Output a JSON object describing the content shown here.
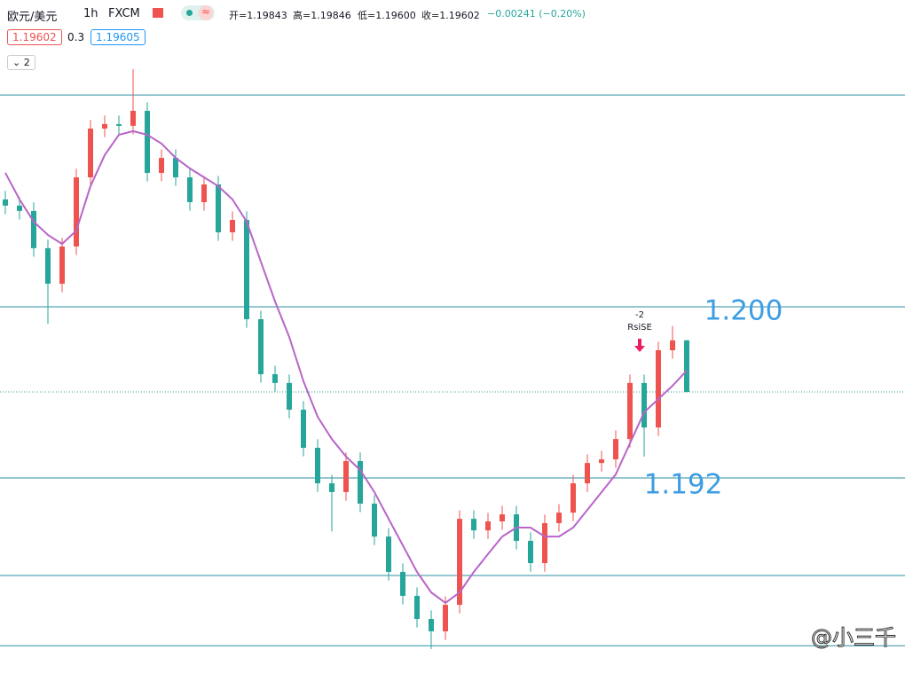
{
  "header": {
    "symbol": "欧元/美元",
    "interval": "1h",
    "source": "FXCM",
    "open": "开=1.19843",
    "high": "高=1.19846",
    "low": "低=1.19600",
    "close": "收=1.19602",
    "change": "−0.00241 (−0.20%)",
    "sell": "1.19602",
    "spread": "0.3",
    "buy": "1.19605",
    "indicators": "2"
  },
  "chart_data": {
    "type": "candlestick",
    "up_color": "#ef5350",
    "down_color": "#26a69a",
    "ma_color": "#b865c8",
    "level_color": "#2e8fa3",
    "ylim": [
      1.18251,
      1.21434
    ],
    "open": [
      1.20502,
      1.20473,
      1.20448,
      1.20274,
      1.20108,
      1.20282,
      1.20605,
      1.20833,
      1.20854,
      1.20846,
      1.20916,
      1.20626,
      1.20696,
      1.20605,
      1.20489,
      1.20572,
      1.20348,
      1.20406,
      1.19942,
      1.19685,
      1.19644,
      1.19519,
      1.19341,
      1.19175,
      1.19134,
      1.19279,
      1.1908,
      1.18926,
      1.18761,
      1.18649,
      1.18541,
      1.18483,
      1.18607,
      1.19009,
      1.18955,
      1.18997,
      1.1903,
      1.18906,
      1.18802,
      1.18989,
      1.19038,
      1.19175,
      1.1927,
      1.19287,
      1.19382,
      1.19644,
      1.19436,
      1.19797,
      1.19843
    ],
    "high": [
      1.20542,
      1.20513,
      1.20488,
      1.20314,
      1.20322,
      1.20645,
      1.20873,
      1.20894,
      1.20894,
      1.21111,
      1.20956,
      1.20736,
      1.20736,
      1.20645,
      1.20612,
      1.20612,
      1.20446,
      1.20446,
      1.19982,
      1.19725,
      1.19684,
      1.19559,
      1.19381,
      1.19215,
      1.19319,
      1.19319,
      1.1912,
      1.18966,
      1.18801,
      1.18689,
      1.18581,
      1.18647,
      1.19049,
      1.19049,
      1.19037,
      1.1907,
      1.1907,
      1.18946,
      1.19029,
      1.19078,
      1.19215,
      1.1931,
      1.19327,
      1.19422,
      1.19684,
      1.19684,
      1.19837,
      1.1991,
      1.19846
    ],
    "low": [
      1.20433,
      1.20408,
      1.20234,
      1.1992,
      1.20068,
      1.20242,
      1.20565,
      1.20793,
      1.20806,
      1.20806,
      1.20586,
      1.20586,
      1.20565,
      1.20449,
      1.20449,
      1.20308,
      1.20308,
      1.19902,
      1.19645,
      1.19604,
      1.19479,
      1.19301,
      1.19135,
      1.1895,
      1.19094,
      1.1904,
      1.18886,
      1.18721,
      1.18609,
      1.18501,
      1.184,
      1.18443,
      1.18567,
      1.18915,
      1.18915,
      1.18957,
      1.18866,
      1.18762,
      1.18762,
      1.18949,
      1.18998,
      1.19135,
      1.1923,
      1.19247,
      1.19342,
      1.193,
      1.19396,
      1.19757,
      1.196
    ],
    "close": [
      1.20473,
      1.20448,
      1.20274,
      1.20108,
      1.20282,
      1.20605,
      1.20833,
      1.20854,
      1.20846,
      1.20916,
      1.20626,
      1.20696,
      1.20605,
      1.20489,
      1.20572,
      1.20348,
      1.20406,
      1.19942,
      1.19685,
      1.19644,
      1.19519,
      1.19341,
      1.19175,
      1.19134,
      1.19279,
      1.1908,
      1.18926,
      1.18761,
      1.18649,
      1.18541,
      1.18483,
      1.18607,
      1.19009,
      1.18955,
      1.18997,
      1.1903,
      1.18906,
      1.18802,
      1.18989,
      1.19038,
      1.19175,
      1.1927,
      1.19287,
      1.19382,
      1.19644,
      1.19436,
      1.19797,
      1.19843,
      1.19602
    ],
    "ma": [
      1.20626,
      1.20502,
      1.20398,
      1.20336,
      1.20294,
      1.20356,
      1.20564,
      1.20709,
      1.20804,
      1.20821,
      1.20804,
      1.20763,
      1.20696,
      1.20647,
      1.20605,
      1.20564,
      1.20502,
      1.20398,
      1.20211,
      1.20025,
      1.19859,
      1.19652,
      1.19486,
      1.19382,
      1.193,
      1.19237,
      1.19134,
      1.19009,
      1.18885,
      1.18761,
      1.18665,
      1.18616,
      1.18665,
      1.18761,
      1.18844,
      1.18926,
      1.18968,
      1.18968,
      1.18926,
      1.18926,
      1.18968,
      1.19051,
      1.19134,
      1.19217,
      1.19362,
      1.19507,
      1.19569,
      1.19631,
      1.19702
    ],
    "levels": [
      {
        "value": 1.2099
      },
      {
        "value": 1.2,
        "label": "1.200"
      },
      {
        "value": 1.192,
        "label": "1.192"
      },
      {
        "value": 1.18744
      },
      {
        "value": 1.18416
      }
    ],
    "signal": {
      "count": "-2",
      "name": "RsiSE"
    },
    "watermark": "@小三千"
  }
}
